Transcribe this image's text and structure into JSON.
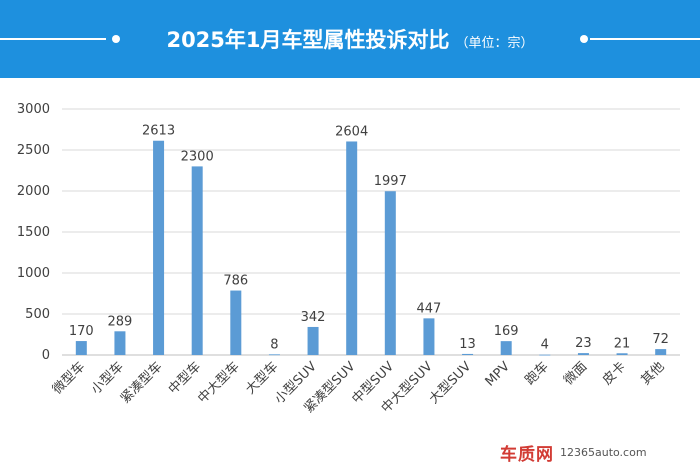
{
  "title": "2025年1月车型属性投诉对比",
  "unit": "（单位：宗）",
  "watermark": {
    "logo": "车质网",
    "url": "12365auto.com"
  },
  "colors": {
    "banner": "#1e90de",
    "bar": "#5b9bd5",
    "grid": "#d9d9d9",
    "text": "#404040"
  },
  "chart_data": {
    "type": "bar",
    "categories": [
      "微型车",
      "小型车",
      "紧凑型车",
      "中型车",
      "中大型车",
      "大型车",
      "小型SUV",
      "紧凑型SUV",
      "中型SUV",
      "中大型SUV",
      "大型SUV",
      "MPV",
      "跑车",
      "微面",
      "皮卡",
      "其他"
    ],
    "values": [
      170,
      289,
      2613,
      2300,
      786,
      8,
      342,
      2604,
      1997,
      447,
      13,
      169,
      4,
      23,
      21,
      72
    ],
    "ylim": [
      0,
      3000
    ],
    "yticks": [
      0,
      500,
      1000,
      1500,
      2000,
      2500,
      3000
    ],
    "grid": true,
    "data_labels": true
  }
}
